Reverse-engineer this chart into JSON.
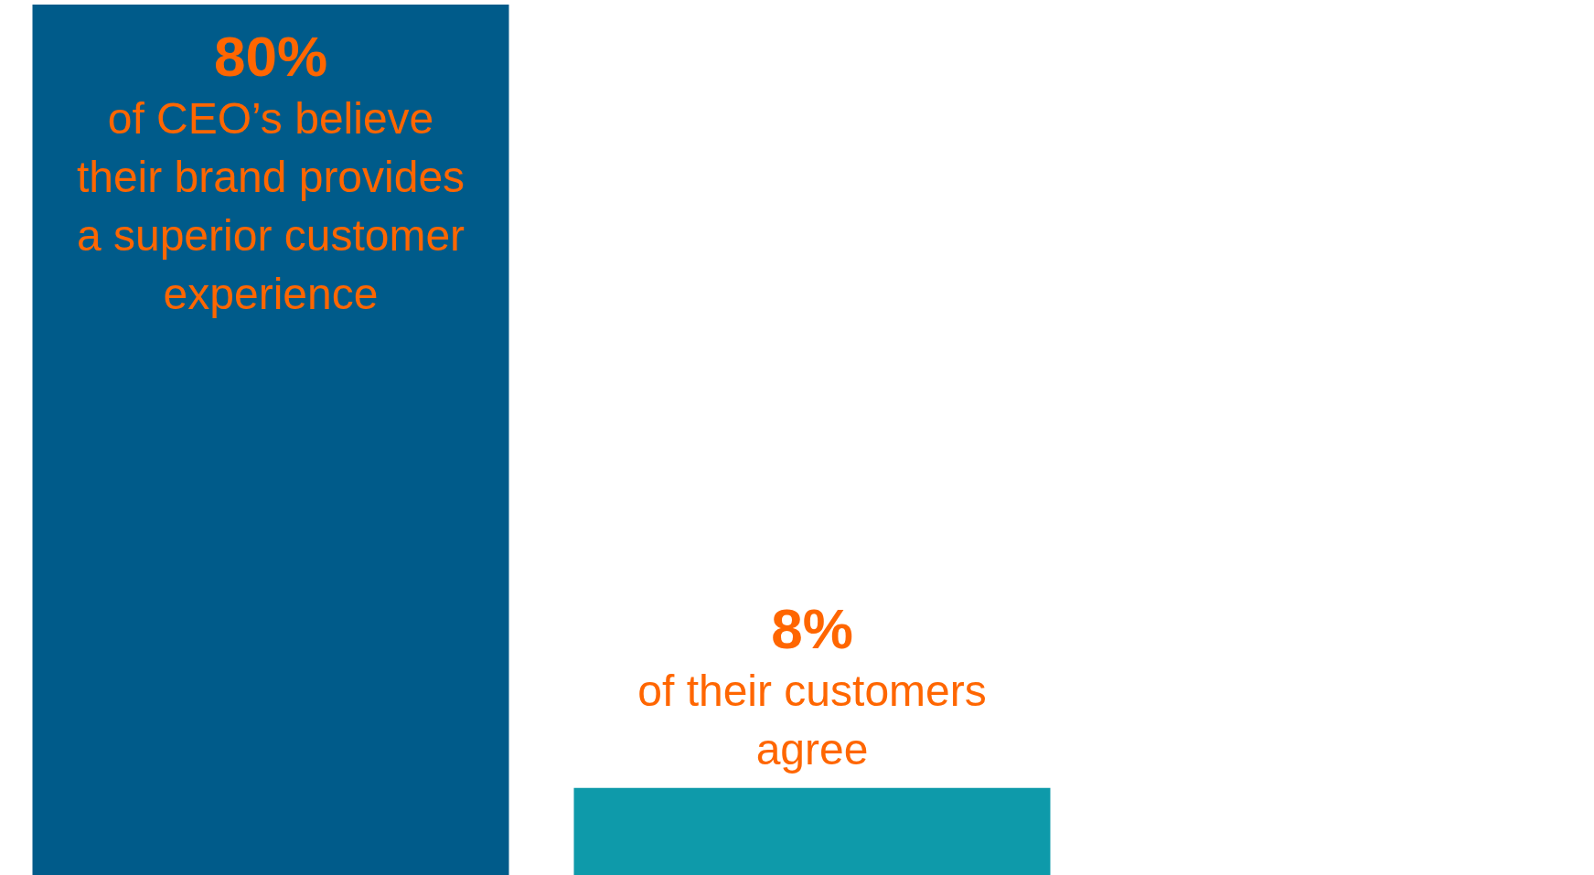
{
  "chart_data": {
    "type": "bar",
    "categories": [
      null,
      null
    ],
    "values": [
      80,
      8
    ],
    "colors": [
      "#005b8a",
      "#0e9aaa"
    ],
    "value_labels": [
      "80% of CEO’s believe their brand provides a superior customer experience",
      "8% of their customers agree"
    ]
  }
}
